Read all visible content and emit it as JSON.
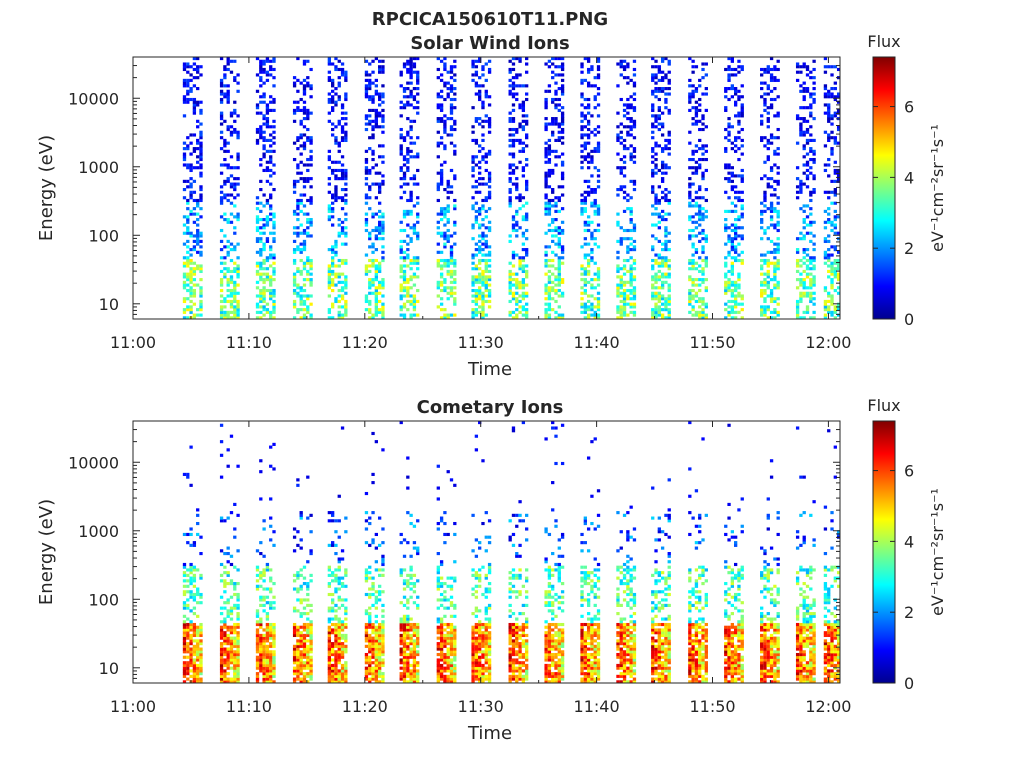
{
  "figure": {
    "suptitle": "RPCICA150610T11.PNG"
  },
  "colormap": {
    "name": "jet",
    "stops": [
      "#00008f",
      "#0000ff",
      "#00ffff",
      "#ffff00",
      "#ff0000",
      "#800000"
    ]
  },
  "chart_data": [
    {
      "type": "heatmap",
      "title": "Solar Wind Ions",
      "xlabel": "Time",
      "ylabel": "Energy (eV)",
      "xlim": [
        "11:00",
        "12:01"
      ],
      "xticks": [
        "11:00",
        "11:10",
        "11:20",
        "11:30",
        "11:40",
        "11:50",
        "12:00"
      ],
      "ylim": [
        6,
        40000
      ],
      "yscale": "log",
      "yticks": [
        "10",
        "100",
        "1000",
        "10000"
      ],
      "colorbar": {
        "title": "Flux",
        "label": "eV⁻¹cm⁻²sr⁻¹s⁻¹",
        "ticks": [
          "0",
          "2",
          "4",
          "6"
        ],
        "clim": [
          0,
          7.4
        ]
      },
      "scan_start_minutes": [
        4.3,
        7.5,
        10.6,
        13.8,
        16.8,
        20.0,
        23.0,
        26.2,
        29.2,
        32.4,
        35.5,
        38.6,
        41.7,
        44.7,
        47.9,
        51.0,
        54.1,
        57.2,
        59.6
      ],
      "scan_width_minutes": 1.7,
      "energy_range_eV": [
        6,
        40000
      ],
      "typical_flux": {
        "low_energy_10_40eV": 3.5,
        "mid_energy_100eV": 2.0,
        "high_energy_1000_10000eV": 0.8
      }
    },
    {
      "type": "heatmap",
      "title": "Cometary Ions",
      "xlabel": "Time",
      "ylabel": "Energy (eV)",
      "xlim": [
        "11:00",
        "12:01"
      ],
      "xticks": [
        "11:00",
        "11:10",
        "11:20",
        "11:30",
        "11:40",
        "11:50",
        "12:00"
      ],
      "ylim": [
        6,
        40000
      ],
      "yscale": "log",
      "yticks": [
        "10",
        "100",
        "1000",
        "10000"
      ],
      "colorbar": {
        "title": "Flux",
        "label": "eV⁻¹cm⁻²sr⁻¹s⁻¹",
        "ticks": [
          "0",
          "2",
          "4",
          "6"
        ],
        "clim": [
          0,
          7.4
        ]
      },
      "scan_start_minutes": [
        4.3,
        7.5,
        10.6,
        13.8,
        16.8,
        20.0,
        23.0,
        26.2,
        29.2,
        32.4,
        35.5,
        38.6,
        41.7,
        44.7,
        47.9,
        51.0,
        54.1,
        57.2,
        59.6
      ],
      "scan_width_minutes": 1.7,
      "energy_range_eV": [
        6,
        40000
      ],
      "typical_flux": {
        "low_energy_10_40eV": 6.0,
        "mid_energy_100eV": 3.5,
        "high_energy_1000_10000eV": 0.5
      }
    }
  ]
}
